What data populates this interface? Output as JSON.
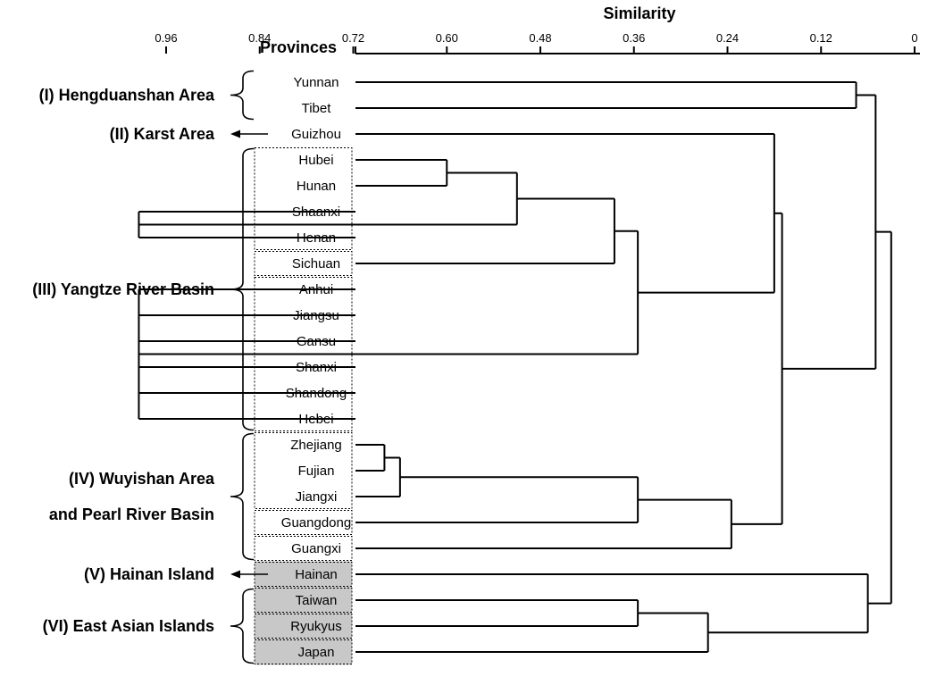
{
  "header": {
    "axis_title": "Similarity",
    "provinces_label": "Provinces"
  },
  "axis": {
    "ticks": [
      0.96,
      0.84,
      0.72,
      0.6,
      0.48,
      0.36,
      0.24,
      0.12,
      0
    ],
    "tick_labels": [
      "0.96",
      "0.84",
      "0.72",
      "0.60",
      "0.48",
      "0.36",
      "0.24",
      "0.12",
      "0"
    ]
  },
  "provinces": [
    {
      "id": "yunnan",
      "label": "Yunnan",
      "shaded": false
    },
    {
      "id": "tibet",
      "label": "Tibet",
      "shaded": false
    },
    {
      "id": "guizhou",
      "label": "Guizhou",
      "shaded": false
    },
    {
      "id": "hubei",
      "label": "Hubei",
      "shaded": false
    },
    {
      "id": "hunan",
      "label": "Hunan",
      "shaded": false
    },
    {
      "id": "shaanxi",
      "label": "Shaanxi",
      "shaded": false
    },
    {
      "id": "henan",
      "label": "Henan",
      "shaded": false
    },
    {
      "id": "sichuan",
      "label": "Sichuan",
      "shaded": false
    },
    {
      "id": "anhui",
      "label": "Anhui",
      "shaded": false
    },
    {
      "id": "jiangsu",
      "label": "Jiangsu",
      "shaded": false
    },
    {
      "id": "gansu",
      "label": "Gansu",
      "shaded": false
    },
    {
      "id": "shanxi",
      "label": "Shanxi",
      "shaded": false
    },
    {
      "id": "shandong",
      "label": "Shandong",
      "shaded": false
    },
    {
      "id": "hebei",
      "label": "Hebei",
      "shaded": false
    },
    {
      "id": "zhejiang",
      "label": "Zhejiang",
      "shaded": false
    },
    {
      "id": "fujian",
      "label": "Fujian",
      "shaded": false
    },
    {
      "id": "jiangxi",
      "label": "Jiangxi",
      "shaded": false
    },
    {
      "id": "guangdong",
      "label": "Guangdong",
      "shaded": false
    },
    {
      "id": "guangxi",
      "label": "Guangxi",
      "shaded": false
    },
    {
      "id": "hainan",
      "label": "Hainan",
      "shaded": true
    },
    {
      "id": "taiwan",
      "label": "Taiwan",
      "shaded": true
    },
    {
      "id": "ryukyus",
      "label": "Ryukyus",
      "shaded": true
    },
    {
      "id": "japan",
      "label": "Japan",
      "shaded": true
    }
  ],
  "clusters": [
    {
      "id": "c_yt",
      "children": [
        "yunnan",
        "tibet"
      ],
      "similarity": 0.075
    },
    {
      "id": "c_hh",
      "children": [
        "hubei",
        "hunan"
      ],
      "similarity": 0.6
    },
    {
      "id": "c_sh",
      "children": [
        "shaanxi",
        "henan"
      ],
      "similarity": 0.995
    },
    {
      "id": "c_hhsh",
      "children": [
        "c_hh",
        "c_sh"
      ],
      "similarity": 0.51
    },
    {
      "id": "c_sc",
      "children": [
        "c_hhsh",
        "sichuan"
      ],
      "similarity": 0.385
    },
    {
      "id": "c_n",
      "children": [
        "anhui",
        "jiangsu",
        "gansu",
        "shanxi",
        "shandong",
        "hebei"
      ],
      "similarity": 0.995
    },
    {
      "id": "c_iii",
      "children": [
        "c_sc",
        "c_n"
      ],
      "similarity": 0.355
    },
    {
      "id": "c_iii_g",
      "children": [
        "guizhou",
        "c_iii"
      ],
      "similarity": 0.18
    },
    {
      "id": "c_zf",
      "children": [
        "zhejiang",
        "fujian"
      ],
      "similarity": 0.68
    },
    {
      "id": "c_zfj",
      "children": [
        "c_zf",
        "jiangxi"
      ],
      "similarity": 0.66
    },
    {
      "id": "c_gd",
      "children": [
        "c_zfj",
        "guangdong"
      ],
      "similarity": 0.355
    },
    {
      "id": "c_gx",
      "children": [
        "c_gd",
        "guangxi"
      ],
      "similarity": 0.235
    },
    {
      "id": "c_mid",
      "children": [
        "c_iii_g",
        "c_gx"
      ],
      "similarity": 0.17
    },
    {
      "id": "c_top",
      "children": [
        "c_yt",
        "c_mid"
      ],
      "similarity": 0.05
    },
    {
      "id": "c_tr",
      "children": [
        "taiwan",
        "ryukyus"
      ],
      "similarity": 0.355
    },
    {
      "id": "c_trj",
      "children": [
        "c_tr",
        "japan"
      ],
      "similarity": 0.265
    },
    {
      "id": "c_hai",
      "children": [
        "hainan",
        "c_trj"
      ],
      "similarity": 0.06
    },
    {
      "id": "c_root",
      "children": [
        "c_top",
        "c_hai"
      ],
      "similarity": 0.03
    }
  ],
  "regions": [
    {
      "id": "region-i",
      "lines": [
        "(I) Hengduanshan Area"
      ],
      "marker": "brace",
      "members": [
        "yunnan",
        "tibet"
      ]
    },
    {
      "id": "region-ii",
      "lines": [
        "(II) Karst Area"
      ],
      "marker": "arrow",
      "members": [
        "guizhou"
      ]
    },
    {
      "id": "region-iii",
      "lines": [
        "(III) Yangtze River Basin"
      ],
      "marker": "brace",
      "members": [
        "hubei",
        "hebei"
      ]
    },
    {
      "id": "region-iv",
      "lines": [
        "(IV) Wuyishan Area",
        "and Pearl River Basin"
      ],
      "marker": "brace",
      "members": [
        "zhejiang",
        "guangxi"
      ]
    },
    {
      "id": "region-v",
      "lines": [
        "(V) Hainan Island"
      ],
      "marker": "arrow",
      "members": [
        "hainan"
      ]
    },
    {
      "id": "region-vi",
      "lines": [
        "(VI) East Asian Islands"
      ],
      "marker": "brace",
      "members": [
        "taiwan",
        "japan"
      ]
    }
  ],
  "boxes": [
    {
      "members": [
        "hubei",
        "henan"
      ]
    },
    {
      "members": [
        "sichuan"
      ]
    },
    {
      "members": [
        "anhui",
        "hebei"
      ]
    },
    {
      "members": [
        "zhejiang",
        "jiangxi"
      ]
    },
    {
      "members": [
        "guangdong"
      ]
    },
    {
      "members": [
        "guangxi"
      ]
    },
    {
      "members": [
        "hainan"
      ]
    },
    {
      "members": [
        "taiwan"
      ]
    },
    {
      "members": [
        "ryukyus"
      ]
    },
    {
      "members": [
        "japan"
      ]
    }
  ],
  "colors": {
    "line": "#000000",
    "shade": "#c8c8c8",
    "background": "#ffffff"
  }
}
